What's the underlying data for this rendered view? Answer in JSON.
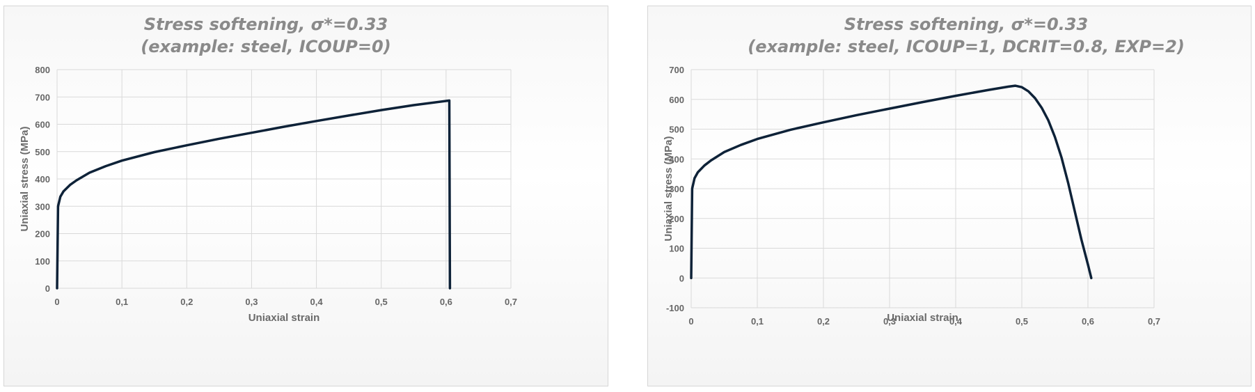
{
  "chart_data": [
    {
      "type": "line",
      "title": [
        "Stress softening, σ*=0.33",
        "(example: steel, ICOUP=0)"
      ],
      "xlabel": "Uniaxial strain",
      "ylabel": "Uniaxial stress (MPa)",
      "xlim": [
        0,
        0.7
      ],
      "ylim": [
        0,
        800
      ],
      "x_ticks": [
        "0",
        "0,1",
        "0,2",
        "0,3",
        "0,4",
        "0,5",
        "0,6",
        "0,7"
      ],
      "y_ticks": [
        "0",
        "100",
        "200",
        "300",
        "400",
        "500",
        "600",
        "700",
        "800"
      ],
      "grid": true,
      "legend": "none",
      "series": [
        {
          "color": "#0e2238",
          "points": [
            [
              0,
              0
            ],
            [
              0.0015,
              300
            ],
            [
              0.005,
              335
            ],
            [
              0.01,
              355
            ],
            [
              0.02,
              378
            ],
            [
              0.03,
              395
            ],
            [
              0.05,
              423
            ],
            [
              0.075,
              447
            ],
            [
              0.1,
              467
            ],
            [
              0.15,
              498
            ],
            [
              0.2,
              523
            ],
            [
              0.25,
              547
            ],
            [
              0.3,
              569
            ],
            [
              0.35,
              591
            ],
            [
              0.4,
              612
            ],
            [
              0.45,
              632
            ],
            [
              0.5,
              652
            ],
            [
              0.55,
              670
            ],
            [
              0.605,
              687
            ],
            [
              0.606,
              0
            ]
          ]
        }
      ]
    },
    {
      "type": "line",
      "title": [
        "Stress softening, σ*=0.33",
        "(example: steel, ICOUP=1, DCRIT=0.8, EXP=2)"
      ],
      "xlabel": "Uniaxial strain",
      "ylabel": "Uniaxial stress (MPa)",
      "xlim": [
        0,
        0.7
      ],
      "ylim": [
        -100,
        700
      ],
      "x_ticks": [
        "0",
        "0,1",
        "0,2",
        "0,3",
        "0,4",
        "0,5",
        "0,6",
        "0,7"
      ],
      "y_ticks": [
        "-100",
        "0",
        "100",
        "200",
        "300",
        "400",
        "500",
        "600",
        "700"
      ],
      "grid": true,
      "legend": "none",
      "series": [
        {
          "color": "#0e2238",
          "points": [
            [
              0,
              0
            ],
            [
              0.0015,
              300
            ],
            [
              0.005,
              335
            ],
            [
              0.01,
              355
            ],
            [
              0.02,
              378
            ],
            [
              0.03,
              395
            ],
            [
              0.05,
              423
            ],
            [
              0.075,
              447
            ],
            [
              0.1,
              467
            ],
            [
              0.15,
              498
            ],
            [
              0.2,
              523
            ],
            [
              0.25,
              547
            ],
            [
              0.3,
              569
            ],
            [
              0.35,
              591
            ],
            [
              0.4,
              612
            ],
            [
              0.45,
              632
            ],
            [
              0.48,
              643
            ],
            [
              0.49,
              646
            ],
            [
              0.5,
              641
            ],
            [
              0.51,
              627
            ],
            [
              0.52,
              604
            ],
            [
              0.53,
              572
            ],
            [
              0.54,
              530
            ],
            [
              0.55,
              474
            ],
            [
              0.56,
              405
            ],
            [
              0.57,
              320
            ],
            [
              0.58,
              225
            ],
            [
              0.59,
              130
            ],
            [
              0.6,
              45
            ],
            [
              0.605,
              0
            ]
          ]
        }
      ]
    }
  ]
}
